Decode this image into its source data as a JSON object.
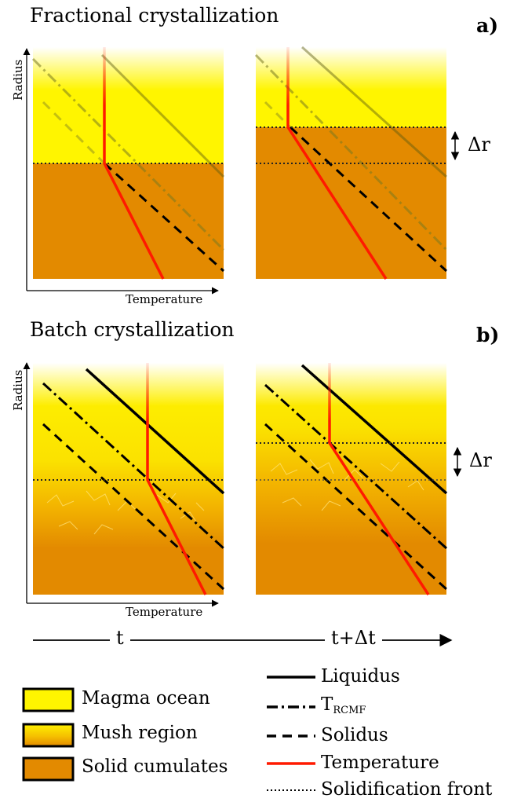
{
  "panels": {
    "a": {
      "title": "Fractional crystallization",
      "label": "a)"
    },
    "b": {
      "title": "Batch crystallization",
      "label": "b)"
    }
  },
  "axes": {
    "xlabel": "Temperature",
    "ylabel": "Radius"
  },
  "delta_r": "Δr",
  "timeline": {
    "start": "t",
    "end": "t+Δt"
  },
  "legend_regions": [
    {
      "label": "Magma ocean",
      "color": "#fff500"
    },
    {
      "label": "Mush region",
      "color": "#f4b800"
    },
    {
      "label": "Solid cumulates",
      "color": "#e38a00"
    }
  ],
  "legend_lines": {
    "liquidus": "Liquidus",
    "trcmf_main": "T",
    "trcmf_sub": "RCMF",
    "solidus": "Solidus",
    "temperature": "Temperature",
    "front": "Solidification front"
  },
  "colors": {
    "magma": "#fff500",
    "cumulates": "#e38a00",
    "temperature": "#ff1a00"
  }
}
